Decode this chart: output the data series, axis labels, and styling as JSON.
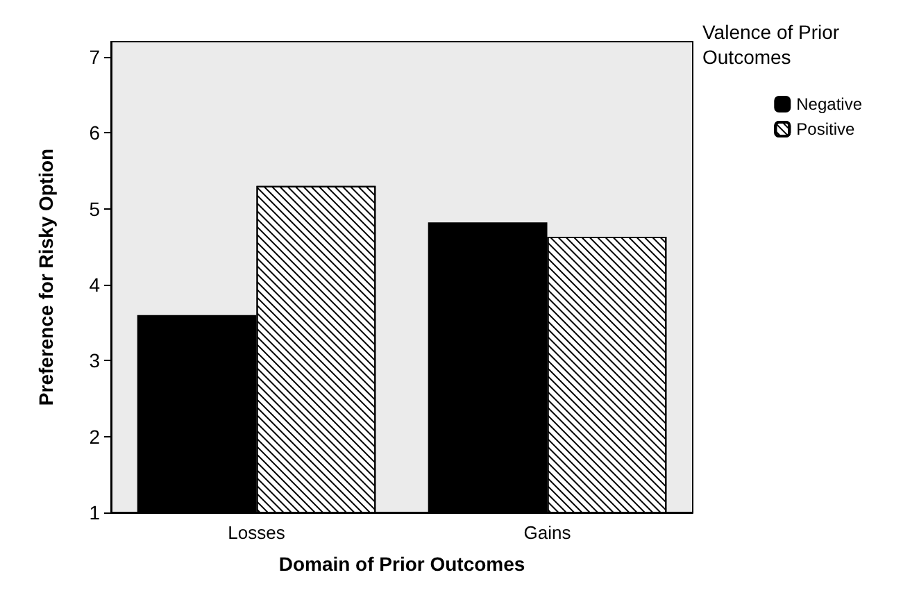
{
  "chart_data": {
    "type": "bar",
    "xlabel": "Domain of Prior Outcomes",
    "ylabel": "Preference for Risky Option",
    "legend_title": "Valence of Prior Outcomes",
    "categories": [
      "Losses",
      "Gains"
    ],
    "series": [
      {
        "name": "Negative",
        "color": "#000000",
        "values": [
          3.6,
          4.82
        ]
      },
      {
        "name": "Positive",
        "color": "#ffffff",
        "values": [
          5.3,
          4.63
        ]
      }
    ],
    "ylim": [
      1,
      7.2
    ],
    "yticks": [
      1,
      2,
      3,
      4,
      5,
      6,
      7
    ],
    "grid": false,
    "legend": "top right"
  }
}
